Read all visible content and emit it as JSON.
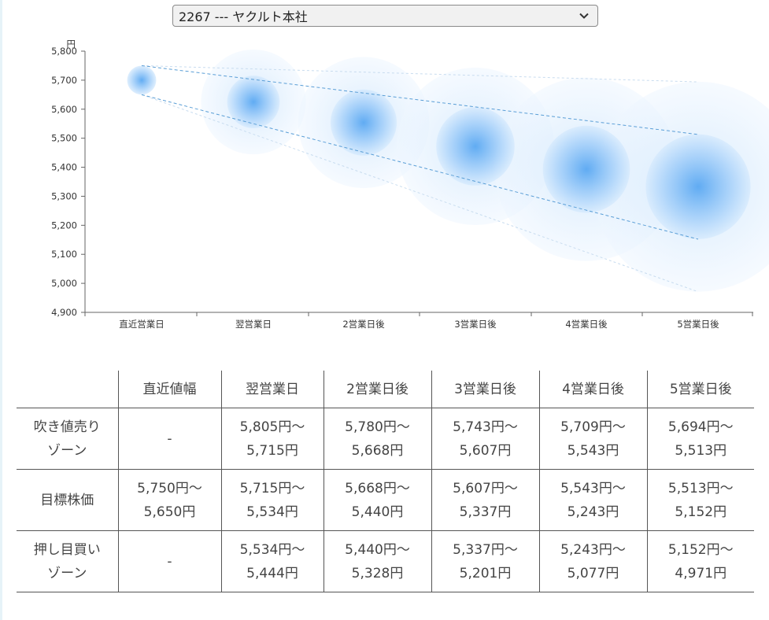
{
  "selector": {
    "value": "2267 --- ヤクルト本社"
  },
  "chart_data": {
    "type": "scatter",
    "ylabel": "円",
    "ylim": [
      4900,
      5800
    ],
    "yticks": [
      5800,
      5700,
      5600,
      5500,
      5400,
      5300,
      5200,
      5100,
      5000,
      4900
    ],
    "ytick_labels": [
      "5,800",
      "5,700",
      "5,600",
      "5,500",
      "5,400",
      "5,300",
      "5,200",
      "5,100",
      "5,000",
      "4,900"
    ],
    "categories": [
      "直近営業日",
      "翌営業日",
      "2営業日後",
      "3営業日後",
      "4営業日後",
      "5営業日後"
    ],
    "center": [
      5700,
      5625,
      5554,
      5472,
      5393,
      5333
    ],
    "target_upper": [
      5750,
      5715,
      5668,
      5607,
      5543,
      5513
    ],
    "target_lower": [
      5650,
      5534,
      5440,
      5337,
      5243,
      5152
    ],
    "zone_upper": [
      5750,
      5805,
      5780,
      5743,
      5709,
      5694
    ],
    "zone_lower": [
      5650,
      5444,
      5328,
      5201,
      5077,
      4971
    ],
    "colors": {
      "bubble": "#4a9ef0",
      "line": "#5a9ed6"
    }
  },
  "table": {
    "header": [
      "",
      "直近値幅",
      "翌営業日",
      "2営業日後",
      "3営業日後",
      "4営業日後",
      "5営業日後"
    ],
    "rows": [
      {
        "label": [
          "吹き値売り",
          "ゾーン"
        ],
        "cells": [
          [
            "-"
          ],
          [
            "5,805円～",
            "5,715円"
          ],
          [
            "5,780円～",
            "5,668円"
          ],
          [
            "5,743円～",
            "5,607円"
          ],
          [
            "5,709円～",
            "5,543円"
          ],
          [
            "5,694円～",
            "5,513円"
          ]
        ]
      },
      {
        "label": [
          "目標株価"
        ],
        "cells": [
          [
            "5,750円～",
            "5,650円"
          ],
          [
            "5,715円～",
            "5,534円"
          ],
          [
            "5,668円～",
            "5,440円"
          ],
          [
            "5,607円～",
            "5,337円"
          ],
          [
            "5,543円～",
            "5,243円"
          ],
          [
            "5,513円～",
            "5,152円"
          ]
        ]
      },
      {
        "label": [
          "押し目買い",
          "ゾーン"
        ],
        "cells": [
          [
            "-"
          ],
          [
            "5,534円～",
            "5,444円"
          ],
          [
            "5,440円～",
            "5,328円"
          ],
          [
            "5,337円～",
            "5,201円"
          ],
          [
            "5,243円～",
            "5,077円"
          ],
          [
            "5,152円～",
            "4,971円"
          ]
        ]
      }
    ]
  }
}
